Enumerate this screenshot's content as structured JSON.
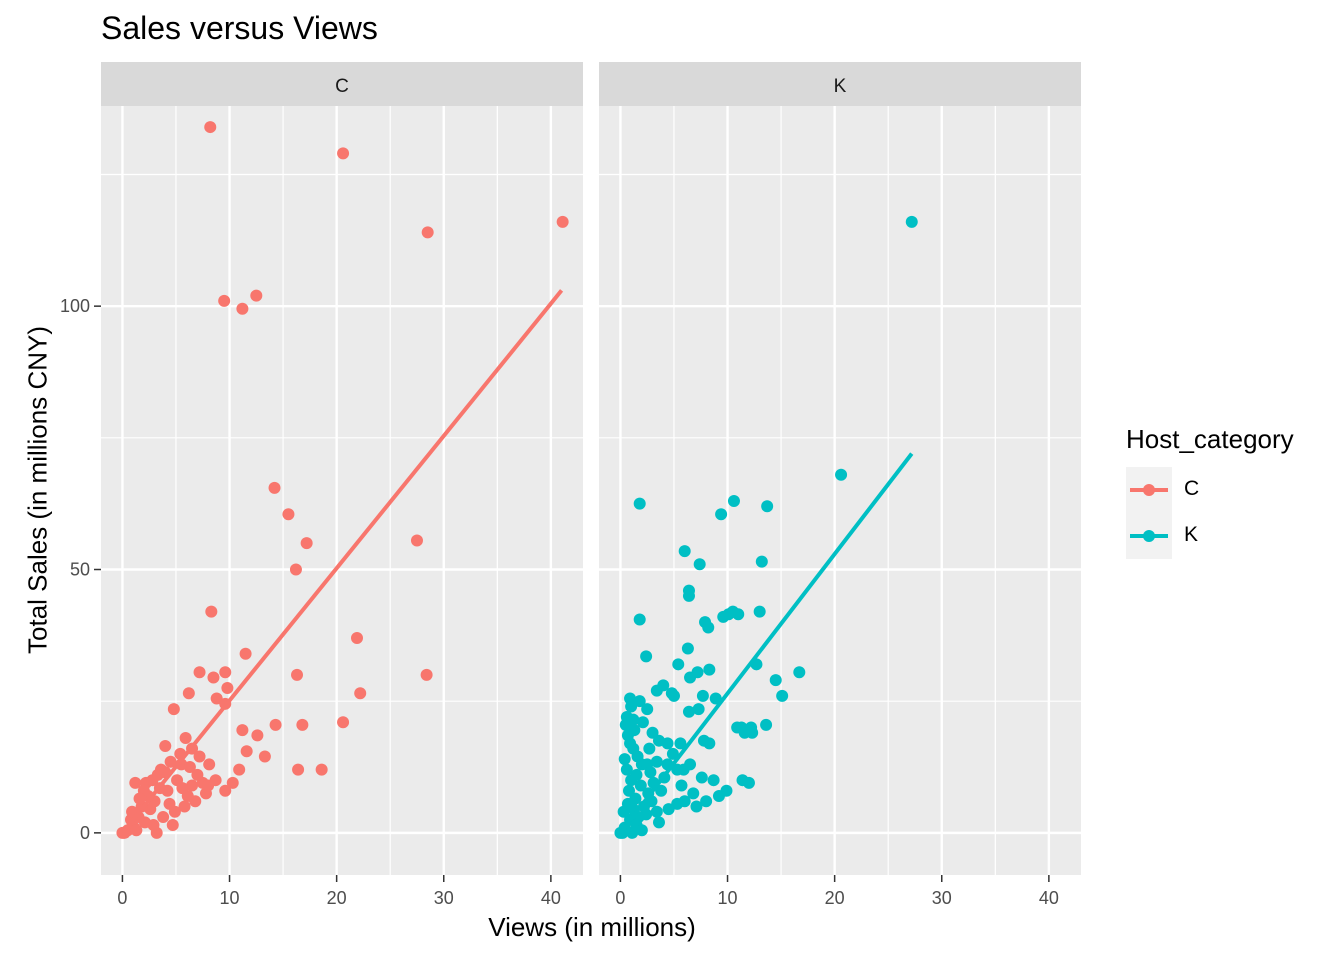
{
  "chart_data": {
    "type": "scatter",
    "title": "Sales versus Views",
    "xlabel": "Views (in millions)",
    "ylabel": "Total Sales (in millions CNY)",
    "xlim": [
      -2,
      43
    ],
    "ylim": [
      -8,
      138
    ],
    "x_ticks": [
      0,
      10,
      20,
      30,
      40
    ],
    "y_ticks": [
      0,
      50,
      100
    ],
    "grid": true,
    "legend": {
      "title": "Host_category",
      "placement": "right",
      "entries": [
        {
          "label": "C",
          "color": "#F8766D"
        },
        {
          "label": "K",
          "color": "#00BFC4"
        }
      ]
    },
    "facets": [
      {
        "label": "C",
        "color": "#F8766D",
        "trend_line": {
          "x": [
            0,
            41
          ],
          "y": [
            0,
            103
          ]
        },
        "points": [
          [
            8.2,
            134
          ],
          [
            20.6,
            129
          ],
          [
            28.5,
            114
          ],
          [
            41.1,
            116
          ],
          [
            9.5,
            101
          ],
          [
            11.2,
            99.5
          ],
          [
            12.5,
            102
          ],
          [
            14.2,
            65.5
          ],
          [
            15.5,
            60.5
          ],
          [
            17.2,
            55
          ],
          [
            16.2,
            50
          ],
          [
            27.5,
            55.5
          ],
          [
            8.3,
            42
          ],
          [
            21.9,
            37
          ],
          [
            22.2,
            26.5
          ],
          [
            28.4,
            30
          ],
          [
            20.6,
            21
          ],
          [
            16.3,
            30
          ],
          [
            16.8,
            20.5
          ],
          [
            14.3,
            20.5
          ],
          [
            16.4,
            12
          ],
          [
            18.6,
            12
          ],
          [
            11.5,
            34
          ],
          [
            9.6,
            30.5
          ],
          [
            7.2,
            30.5
          ],
          [
            8.5,
            29.5
          ],
          [
            9.8,
            27.5
          ],
          [
            6.2,
            26.5
          ],
          [
            8.8,
            25.5
          ],
          [
            4.8,
            23.5
          ],
          [
            9.6,
            24.5
          ],
          [
            11.2,
            19.5
          ],
          [
            12.6,
            18.5
          ],
          [
            13.3,
            14.5
          ],
          [
            11.6,
            15.5
          ],
          [
            10.9,
            12
          ],
          [
            10.3,
            9.5
          ],
          [
            9.6,
            8
          ],
          [
            8.7,
            10
          ],
          [
            5.9,
            18
          ],
          [
            4.0,
            16.5
          ],
          [
            6.5,
            16
          ],
          [
            7.2,
            14.5
          ],
          [
            5.5,
            13
          ],
          [
            4.5,
            13.5
          ],
          [
            3.3,
            11
          ],
          [
            2.2,
            9.5
          ],
          [
            1.2,
            9.5
          ],
          [
            6.5,
            9
          ],
          [
            7.5,
            9.5
          ],
          [
            6.8,
            6
          ],
          [
            5.8,
            5
          ],
          [
            4.7,
            1.5
          ],
          [
            3.2,
            0
          ],
          [
            3.8,
            3
          ],
          [
            2.1,
            2
          ],
          [
            1.1,
            1
          ],
          [
            0.5,
            0.5
          ],
          [
            0.2,
            0
          ],
          [
            0,
            0
          ],
          [
            0.8,
            2.5
          ],
          [
            1.5,
            3
          ],
          [
            2.6,
            4.5
          ],
          [
            3.0,
            6
          ],
          [
            4.2,
            8
          ],
          [
            5.1,
            10
          ],
          [
            3.6,
            12
          ],
          [
            2.4,
            7
          ],
          [
            1.8,
            5
          ],
          [
            2.9,
            1.5
          ],
          [
            4.9,
            4
          ],
          [
            6.1,
            7
          ],
          [
            7.0,
            11
          ],
          [
            8.1,
            13
          ],
          [
            5.4,
            15
          ],
          [
            4.4,
            5.5
          ],
          [
            3.5,
            8.5
          ],
          [
            2.0,
            8
          ],
          [
            2.8,
            10
          ],
          [
            1.6,
            6.5
          ],
          [
            0.9,
            4
          ],
          [
            1.3,
            0.5
          ],
          [
            4.0,
            11.5
          ],
          [
            5.6,
            8.5
          ],
          [
            6.3,
            12.5
          ],
          [
            7.8,
            7.5
          ],
          [
            8.0,
            9
          ]
        ]
      },
      {
        "label": "K",
        "color": "#00BFC4",
        "trend_line": {
          "x": [
            0,
            27.2
          ],
          "y": [
            0,
            72
          ]
        },
        "points": [
          [
            27.2,
            116
          ],
          [
            20.6,
            68
          ],
          [
            1.8,
            62.5
          ],
          [
            10.6,
            63
          ],
          [
            9.4,
            60.5
          ],
          [
            13.7,
            62
          ],
          [
            6.0,
            53.5
          ],
          [
            7.4,
            51
          ],
          [
            13.2,
            51.5
          ],
          [
            6.4,
            46
          ],
          [
            6.4,
            45
          ],
          [
            10.1,
            41.5
          ],
          [
            10.5,
            42
          ],
          [
            11.0,
            41.5
          ],
          [
            13.0,
            42
          ],
          [
            9.6,
            41
          ],
          [
            7.9,
            40
          ],
          [
            8.2,
            39
          ],
          [
            1.8,
            40.5
          ],
          [
            2.4,
            33.5
          ],
          [
            6.3,
            35
          ],
          [
            5.4,
            32
          ],
          [
            8.3,
            31
          ],
          [
            16.7,
            30.5
          ],
          [
            14.5,
            29
          ],
          [
            12.7,
            32
          ],
          [
            15.1,
            26
          ],
          [
            6.5,
            29.5
          ],
          [
            7.2,
            30.5
          ],
          [
            4.0,
            28
          ],
          [
            3.4,
            27
          ],
          [
            4.8,
            26.5
          ],
          [
            5.0,
            26
          ],
          [
            7.7,
            26
          ],
          [
            8.9,
            25.5
          ],
          [
            0.9,
            25.5
          ],
          [
            1.8,
            25
          ],
          [
            2.5,
            23.5
          ],
          [
            6.4,
            23
          ],
          [
            7.3,
            23.5
          ],
          [
            11.3,
            20
          ],
          [
            12.2,
            20
          ],
          [
            13.6,
            20.5
          ],
          [
            10.9,
            20
          ],
          [
            11.6,
            19
          ],
          [
            12.3,
            19
          ],
          [
            0.6,
            22
          ],
          [
            1.2,
            21.5
          ],
          [
            0.7,
            18.5
          ],
          [
            3.6,
            17.5
          ],
          [
            4.4,
            17
          ],
          [
            5.6,
            17
          ],
          [
            7.8,
            17.5
          ],
          [
            8.3,
            17
          ],
          [
            1.2,
            16
          ],
          [
            2.0,
            13
          ],
          [
            2.5,
            13
          ],
          [
            3.4,
            13.5
          ],
          [
            4.4,
            13
          ],
          [
            5.3,
            12
          ],
          [
            5.9,
            12
          ],
          [
            6.5,
            13
          ],
          [
            7.6,
            10.5
          ],
          [
            8.7,
            10
          ],
          [
            11.4,
            10
          ],
          [
            12.0,
            9.5
          ],
          [
            9.9,
            8
          ],
          [
            9.2,
            7
          ],
          [
            6.0,
            6
          ],
          [
            5.3,
            5.5
          ],
          [
            7.1,
            5
          ],
          [
            8.0,
            6
          ],
          [
            4.5,
            4.5
          ],
          [
            3.4,
            4
          ],
          [
            2.4,
            3.5
          ],
          [
            1.7,
            3
          ],
          [
            0.9,
            2.5
          ],
          [
            0.4,
            1
          ],
          [
            0,
            0
          ],
          [
            0.2,
            0
          ],
          [
            0.5,
            0.5
          ],
          [
            1.1,
            0
          ],
          [
            1.5,
            1.5
          ],
          [
            2.0,
            0.5
          ],
          [
            2.2,
            5
          ],
          [
            1.4,
            6.5
          ],
          [
            0.8,
            8
          ],
          [
            1.0,
            10
          ],
          [
            0.6,
            12
          ],
          [
            1.5,
            11
          ],
          [
            1.9,
            9
          ],
          [
            2.6,
            7.5
          ],
          [
            3.1,
            9.5
          ],
          [
            3.8,
            8
          ],
          [
            2.8,
            11.5
          ],
          [
            0.3,
            4
          ],
          [
            0.7,
            5.5
          ],
          [
            1.2,
            4.5
          ],
          [
            0.4,
            14
          ],
          [
            0.9,
            17
          ],
          [
            1.3,
            19.5
          ],
          [
            2.1,
            21
          ],
          [
            3.0,
            19
          ],
          [
            2.7,
            16
          ],
          [
            4.9,
            15
          ],
          [
            4.1,
            10.5
          ],
          [
            5.7,
            9
          ],
          [
            6.8,
            7.5
          ],
          [
            3.6,
            2
          ],
          [
            2.9,
            6
          ],
          [
            1.6,
            14.5
          ],
          [
            0.5,
            20.5
          ],
          [
            1.0,
            24
          ]
        ]
      }
    ]
  }
}
